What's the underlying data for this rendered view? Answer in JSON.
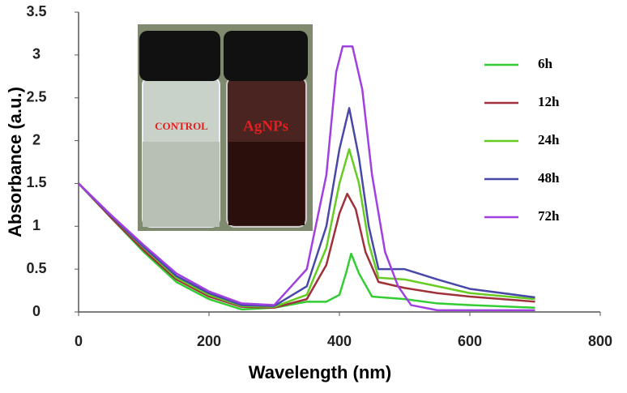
{
  "chart_data": {
    "type": "line",
    "x_label": "Wavelength (nm)",
    "y_label": "Absorbance (a.u.)",
    "xlim": [
      0,
      800
    ],
    "xticks": [
      0,
      200,
      400,
      600,
      800
    ],
    "ylim": [
      0,
      3.5
    ],
    "yticks": [
      0,
      0.5,
      1,
      1.5,
      2,
      2.5,
      3,
      3.5
    ],
    "grid": false,
    "legend": "right",
    "series": [
      {
        "name": "6h",
        "color": "#33cc33",
        "x": [
          0,
          50,
          100,
          150,
          200,
          250,
          300,
          350,
          380,
          400,
          410,
          418,
          430,
          450,
          500,
          550,
          600,
          700
        ],
        "values": [
          1.5,
          1.1,
          0.7,
          0.35,
          0.15,
          0.03,
          0.05,
          0.12,
          0.12,
          0.2,
          0.45,
          0.68,
          0.45,
          0.18,
          0.15,
          0.1,
          0.08,
          0.05
        ]
      },
      {
        "name": "12h",
        "color": "#a0303a",
        "x": [
          0,
          50,
          100,
          150,
          200,
          250,
          300,
          350,
          380,
          400,
          412,
          425,
          440,
          460,
          500,
          550,
          600,
          700
        ],
        "values": [
          1.5,
          1.1,
          0.72,
          0.38,
          0.18,
          0.06,
          0.05,
          0.15,
          0.55,
          1.15,
          1.38,
          1.2,
          0.7,
          0.35,
          0.28,
          0.22,
          0.18,
          0.12
        ]
      },
      {
        "name": "24h",
        "color": "#66cc22",
        "x": [
          0,
          50,
          100,
          150,
          200,
          250,
          300,
          350,
          380,
          400,
          415,
          430,
          445,
          460,
          500,
          550,
          600,
          700
        ],
        "values": [
          1.5,
          1.12,
          0.75,
          0.4,
          0.2,
          0.07,
          0.06,
          0.2,
          0.75,
          1.5,
          1.9,
          1.5,
          0.8,
          0.4,
          0.38,
          0.3,
          0.22,
          0.15
        ]
      },
      {
        "name": "48h",
        "color": "#4848a8",
        "x": [
          0,
          50,
          100,
          150,
          200,
          250,
          300,
          350,
          380,
          400,
          415,
          430,
          445,
          460,
          500,
          550,
          600,
          700
        ],
        "values": [
          1.5,
          1.12,
          0.76,
          0.42,
          0.22,
          0.08,
          0.07,
          0.3,
          1.0,
          1.9,
          2.38,
          1.8,
          1.0,
          0.5,
          0.5,
          0.38,
          0.27,
          0.17
        ]
      },
      {
        "name": "72h",
        "color": "#a040e0",
        "x": [
          0,
          50,
          100,
          150,
          200,
          250,
          300,
          350,
          380,
          395,
          405,
          420,
          435,
          450,
          470,
          490,
          510,
          550,
          600,
          700
        ],
        "values": [
          1.5,
          1.13,
          0.78,
          0.45,
          0.24,
          0.1,
          0.08,
          0.5,
          1.6,
          2.8,
          3.1,
          3.1,
          2.6,
          1.6,
          0.7,
          0.3,
          0.08,
          0.02,
          0.02,
          0.02
        ]
      }
    ]
  },
  "inset": {
    "labels": [
      "CONTROL",
      "AgNPs"
    ]
  }
}
